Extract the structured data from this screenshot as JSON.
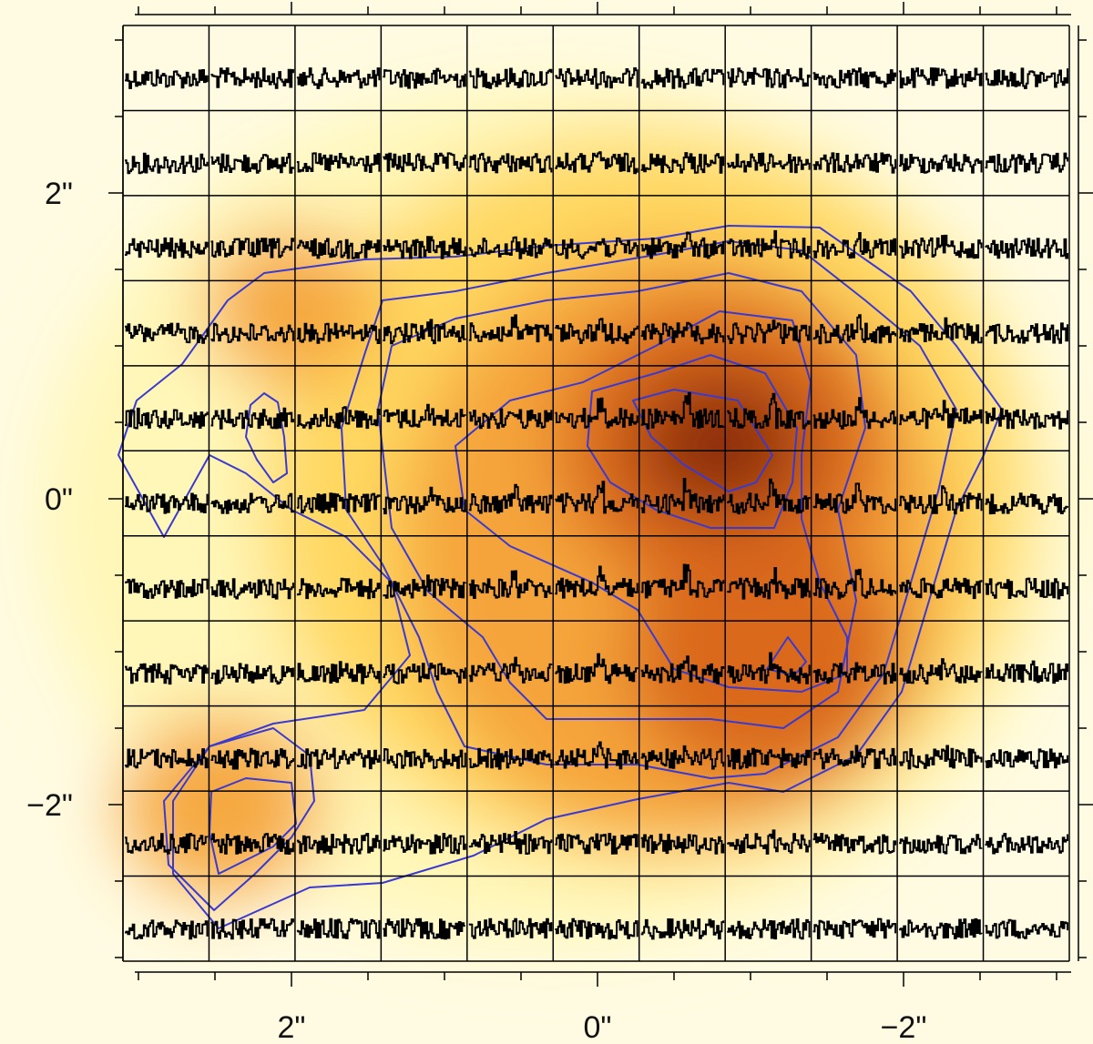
{
  "chart_data": {
    "type": "heatmap",
    "title": "",
    "xlabel": "",
    "ylabel": "",
    "x_axis": {
      "reversed": true,
      "range": [
        3.0,
        -3.0
      ],
      "major_ticks": [
        2,
        0,
        -2
      ],
      "tick_labels": [
        "2\"",
        "0\"",
        "−2\""
      ]
    },
    "y_axis": {
      "range": [
        -3.0,
        3.0
      ],
      "major_ticks": [
        2,
        0,
        -2
      ],
      "tick_labels": [
        "2\"",
        "0\"",
        "−2\""
      ]
    },
    "spectra_grid": {
      "columns": 11,
      "rows": 11,
      "cell_size_arcsec": 0.55,
      "line": "black spectra, noisy continuum with a weak emission line near the centre of each cell"
    },
    "background_map": {
      "colormap": [
        "#ffffff",
        "#fff7b8",
        "#ffd860",
        "#f5a43a",
        "#d8661a",
        "#8f2e08"
      ],
      "peaks": [
        {
          "x": -0.8,
          "y": 0.35,
          "level": 1.0
        },
        {
          "x": -1.1,
          "y": -1.05,
          "level": 0.78
        },
        {
          "x": 2.45,
          "y": -2.0,
          "level": 0.42
        },
        {
          "x": 2.0,
          "y": 1.25,
          "level": 0.3
        }
      ]
    },
    "contours": {
      "color": "#3a3ad0",
      "levels": 5
    },
    "grid": true,
    "legend": "none"
  }
}
